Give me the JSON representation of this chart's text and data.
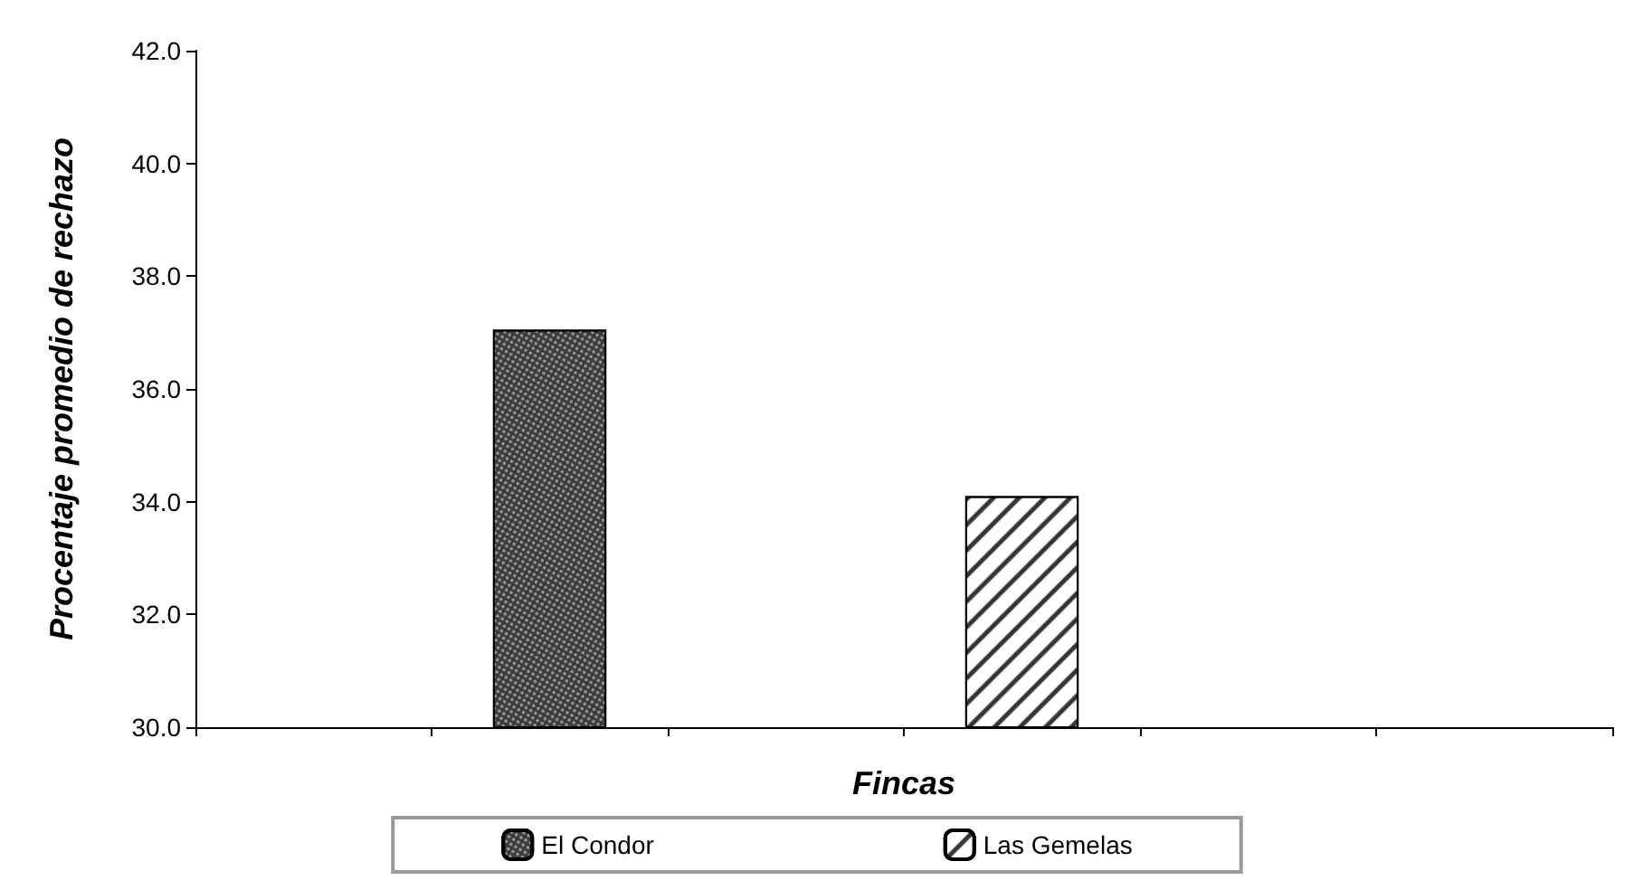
{
  "chart_data": {
    "type": "bar",
    "xlabel": "Fincas",
    "ylabel": "Procentaje promedio de rechazo",
    "categories": [
      null,
      null,
      null,
      null,
      null,
      null
    ],
    "series": [
      {
        "name": "El Condor",
        "color": "#3a3a3a",
        "values": [
          null,
          37.05,
          null,
          null,
          null,
          null
        ]
      },
      {
        "name": "Las Gemelas",
        "color": "#ffffff",
        "values": [
          null,
          null,
          null,
          34.1,
          null,
          null
        ]
      }
    ],
    "ylim": [
      30,
      42
    ],
    "yticks": [
      {
        "value": 30,
        "label": "30.0"
      },
      {
        "value": 32,
        "label": "32.0"
      },
      {
        "value": 34,
        "label": "34.0"
      },
      {
        "value": 36,
        "label": "36.0"
      },
      {
        "value": 38,
        "label": "38.0"
      },
      {
        "value": 40,
        "label": "40.0"
      },
      {
        "value": 42,
        "label": "42.0"
      }
    ],
    "grid": false,
    "legend": "bottom"
  }
}
